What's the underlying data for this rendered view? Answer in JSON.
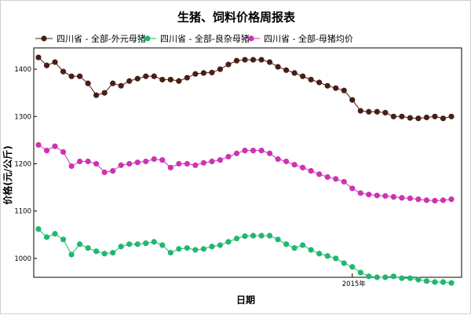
{
  "chart_data": {
    "type": "line",
    "title": "生猪、饲料价格周报表",
    "xlabel": "日期",
    "ylabel": "价格(元/公斤)",
    "ylim": [
      960,
      1445
    ],
    "yticks": [
      1000,
      1100,
      1200,
      1300,
      1400
    ],
    "x_tick_label": "2015年",
    "x_tick_index": 38,
    "series": [
      {
        "name": "四川省 - 全部-外元母猪",
        "color": "#4a1e14",
        "values": [
          1425,
          1408,
          1415,
          1395,
          1385,
          1385,
          1370,
          1345,
          1350,
          1370,
          1365,
          1375,
          1380,
          1385,
          1385,
          1378,
          1378,
          1375,
          1382,
          1390,
          1392,
          1393,
          1400,
          1410,
          1418,
          1420,
          1420,
          1420,
          1415,
          1405,
          1398,
          1392,
          1385,
          1378,
          1372,
          1365,
          1360,
          1355,
          1335,
          1312,
          1310,
          1310,
          1308,
          1300,
          1300,
          1297,
          1296,
          1298,
          1300,
          1296,
          1300
        ]
      },
      {
        "name": "四川省 - 全部-良杂母猪",
        "color": "#1fb86e",
        "values": [
          1062,
          1045,
          1052,
          1040,
          1008,
          1030,
          1022,
          1015,
          1010,
          1012,
          1025,
          1030,
          1030,
          1032,
          1035,
          1028,
          1012,
          1020,
          1022,
          1018,
          1020,
          1025,
          1028,
          1035,
          1042,
          1047,
          1048,
          1048,
          1048,
          1040,
          1030,
          1022,
          1028,
          1018,
          1010,
          1005,
          1000,
          990,
          982,
          970,
          962,
          960,
          960,
          962,
          958,
          958,
          955,
          952,
          950,
          950,
          948
        ]
      },
      {
        "name": "四川省 - 全部-母猪均价",
        "color": "#cc33b3",
        "values": [
          1240,
          1228,
          1237,
          1225,
          1195,
          1205,
          1205,
          1200,
          1182,
          1185,
          1197,
          1200,
          1203,
          1205,
          1210,
          1208,
          1192,
          1200,
          1200,
          1197,
          1202,
          1205,
          1208,
          1215,
          1222,
          1228,
          1228,
          1228,
          1222,
          1210,
          1205,
          1198,
          1192,
          1185,
          1178,
          1172,
          1168,
          1162,
          1148,
          1138,
          1135,
          1133,
          1132,
          1130,
          1128,
          1127,
          1125,
          1123,
          1122,
          1123,
          1125
        ]
      }
    ]
  }
}
